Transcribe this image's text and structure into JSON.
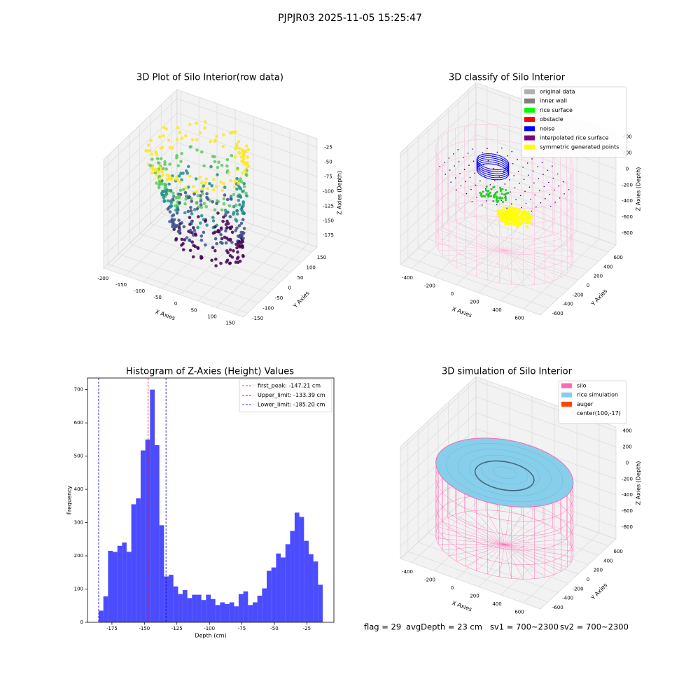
{
  "figure": {
    "title": "PJPJR03 2025-11-05 15:25:47",
    "footer": [
      "flag = 29",
      "avgDepth = 23 cm",
      "sv1 = 700~2300",
      "sv2 = 700~2300"
    ]
  },
  "chart_data": [
    {
      "type": "scatter3d",
      "title": "3D Plot of Silo Interior(row data)",
      "xlabel": "X Axies",
      "ylabel": "Y Axies",
      "zlabel": "Z Axies (Depth)",
      "xlim": [
        -210,
        175
      ],
      "ylim": [
        -170,
        175
      ],
      "zlim": [
        -195,
        -10
      ],
      "xticks": [
        -200,
        -150,
        -100,
        -50,
        0,
        50,
        100,
        150
      ],
      "yticks": [
        -150,
        -100,
        -50,
        0,
        50,
        100,
        150
      ],
      "zticks": [
        -175,
        -150,
        -125,
        -100,
        -75,
        -50,
        -25
      ]
    },
    {
      "type": "scatter3d",
      "title": "3D classify of Silo Interior",
      "xlabel": "X Axies",
      "ylabel": "Y Axies",
      "zlabel": "Z Axies (Depth)",
      "xlim": [
        -500,
        750
      ],
      "ylim": [
        -750,
        750
      ],
      "zlim": [
        -950,
        450
      ],
      "xticks": [
        -400,
        -200,
        0,
        200,
        400,
        600
      ],
      "yticks": [
        -600,
        -400,
        -200,
        0,
        200,
        400,
        600
      ],
      "zticks": [
        -800,
        -600,
        -400,
        -200,
        0,
        200,
        400
      ],
      "legend_loc": "upper right",
      "legend": [
        {
          "name": "original data",
          "color": "#b0b0b0"
        },
        {
          "name": "inner wall",
          "color": "#808080"
        },
        {
          "name": "rice surface",
          "color": "#00ff00"
        },
        {
          "name": "obstacle",
          "color": "#ff0000"
        },
        {
          "name": "noise",
          "color": "#0000ff"
        },
        {
          "name": "interpolated rice surface",
          "color": "#800080"
        },
        {
          "name": "symmetric generated points",
          "color": "#ffff00"
        }
      ]
    },
    {
      "type": "histogram",
      "title": "Histogram of Z-Axies (Height) Values",
      "xlabel": "Depth (cm)",
      "ylabel": "Frequency",
      "color": "#0000ff",
      "alpha": 0.7,
      "bins": [
        -185.2,
        -181.6,
        -178.0,
        -174.4,
        -170.8,
        -167.2,
        -163.7,
        -160.1,
        -156.5,
        -152.9,
        -149.3,
        -145.7,
        -142.1,
        -138.5,
        -134.9,
        -131.3,
        -127.7,
        -124.1,
        -120.6,
        -117.0,
        -113.4,
        -109.8,
        -106.2,
        -102.6,
        -99.0,
        -95.4,
        -91.8,
        -88.2,
        -84.6,
        -81.0,
        -77.5,
        -73.9,
        -70.3,
        -66.7,
        -63.1,
        -59.5,
        -55.9,
        -52.3,
        -48.7,
        -45.1,
        -41.5,
        -37.9,
        -34.4,
        -30.8,
        -27.2,
        -23.6,
        -20.0,
        -16.4,
        -12.8
      ],
      "counts": [
        35,
        78,
        215,
        212,
        230,
        240,
        212,
        355,
        373,
        517,
        550,
        700,
        533,
        292,
        138,
        143,
        108,
        85,
        97,
        73,
        83,
        83,
        67,
        83,
        70,
        52,
        60,
        55,
        60,
        48,
        85,
        93,
        52,
        60,
        80,
        102,
        155,
        165,
        207,
        195,
        235,
        275,
        330,
        317,
        245,
        205,
        183,
        113
      ],
      "vlines": [
        {
          "name": "first_peak: -147.21 cm",
          "x": -147.21,
          "color": "#ff0000"
        },
        {
          "name": "Upper_limit: -133.39 cm",
          "x": -133.39,
          "color": "#0000cc"
        },
        {
          "name": "Lower_limit: -185.20 cm",
          "x": -185.2,
          "color": "#0000cc"
        }
      ],
      "legend_loc": "upper right",
      "xlim": [
        -193.8,
        -4.2
      ],
      "ylim": [
        0,
        735
      ],
      "xticks": [
        -175,
        -150,
        -125,
        -100,
        -75,
        -50,
        -25
      ],
      "yticks": [
        0,
        100,
        200,
        300,
        400,
        500,
        600,
        700
      ]
    },
    {
      "type": "surface3d",
      "title": "3D simulation of Silo Interior",
      "xlabel": "X Axies",
      "ylabel": "Y Axies",
      "zlabel": "Z Axies (Depth)",
      "xlim": [
        -500,
        750
      ],
      "ylim": [
        -750,
        750
      ],
      "zlim": [
        -950,
        450
      ],
      "xticks": [
        -400,
        -200,
        0,
        200,
        400,
        600
      ],
      "yticks": [
        -600,
        -400,
        -200,
        0,
        200,
        400,
        600
      ],
      "zticks": [
        -800,
        -600,
        -400,
        -200,
        0,
        200,
        400
      ],
      "legend_loc": "upper right",
      "legend": [
        {
          "name": "silo",
          "color": "#ff69b4"
        },
        {
          "name": "rice simulation",
          "color": "#87ceeb"
        },
        {
          "name": "auger",
          "color": "#ff4500"
        },
        {
          "name": "center(100,-17)",
          "color": "#ffffff"
        }
      ]
    }
  ]
}
